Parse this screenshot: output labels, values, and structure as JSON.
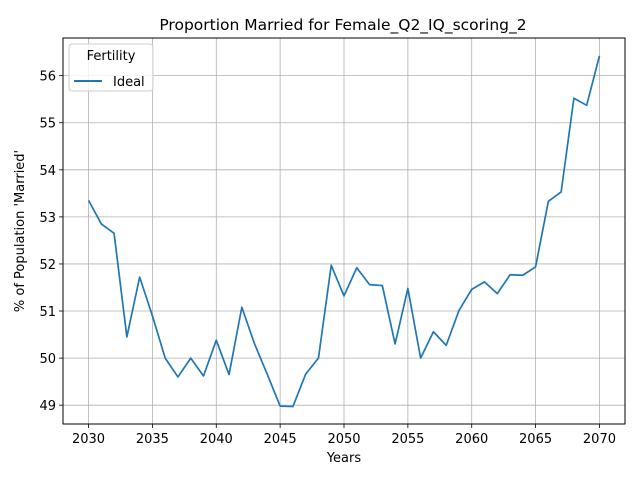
{
  "chart_data": {
    "type": "line",
    "title": "Proportion Married for Female_Q2_IQ_scoring_2",
    "xlabel": "Years",
    "ylabel": "% of Population 'Married'",
    "xlim": [
      2028,
      2072
    ],
    "ylim": [
      48.6,
      56.8
    ],
    "xticks": [
      2030,
      2035,
      2040,
      2045,
      2050,
      2055,
      2060,
      2065,
      2070
    ],
    "yticks": [
      49,
      50,
      51,
      52,
      53,
      54,
      55,
      56
    ],
    "grid": true,
    "legend": {
      "title": "Fertility",
      "placement": "top-left"
    },
    "series": [
      {
        "name": "Ideal",
        "color": "#1f77b4",
        "x": [
          2030,
          2031,
          2032,
          2033,
          2034,
          2035,
          2036,
          2037,
          2038,
          2039,
          2040,
          2041,
          2042,
          2043,
          2044,
          2045,
          2046,
          2047,
          2048,
          2049,
          2050,
          2051,
          2052,
          2053,
          2054,
          2055,
          2056,
          2057,
          2058,
          2059,
          2060,
          2061,
          2062,
          2063,
          2064,
          2065,
          2066,
          2067,
          2068,
          2069,
          2070
        ],
        "y": [
          53.35,
          52.85,
          52.65,
          50.45,
          51.72,
          50.9,
          50.0,
          49.6,
          50.0,
          49.62,
          50.38,
          49.65,
          51.08,
          50.3,
          49.65,
          48.98,
          48.97,
          49.66,
          50.0,
          51.97,
          51.32,
          51.92,
          51.56,
          51.54,
          50.3,
          51.48,
          50.0,
          50.56,
          50.27,
          51.01,
          51.46,
          51.62,
          51.37,
          51.77,
          51.76,
          51.94,
          53.33,
          53.53,
          55.52,
          55.37,
          56.42
        ]
      }
    ]
  }
}
